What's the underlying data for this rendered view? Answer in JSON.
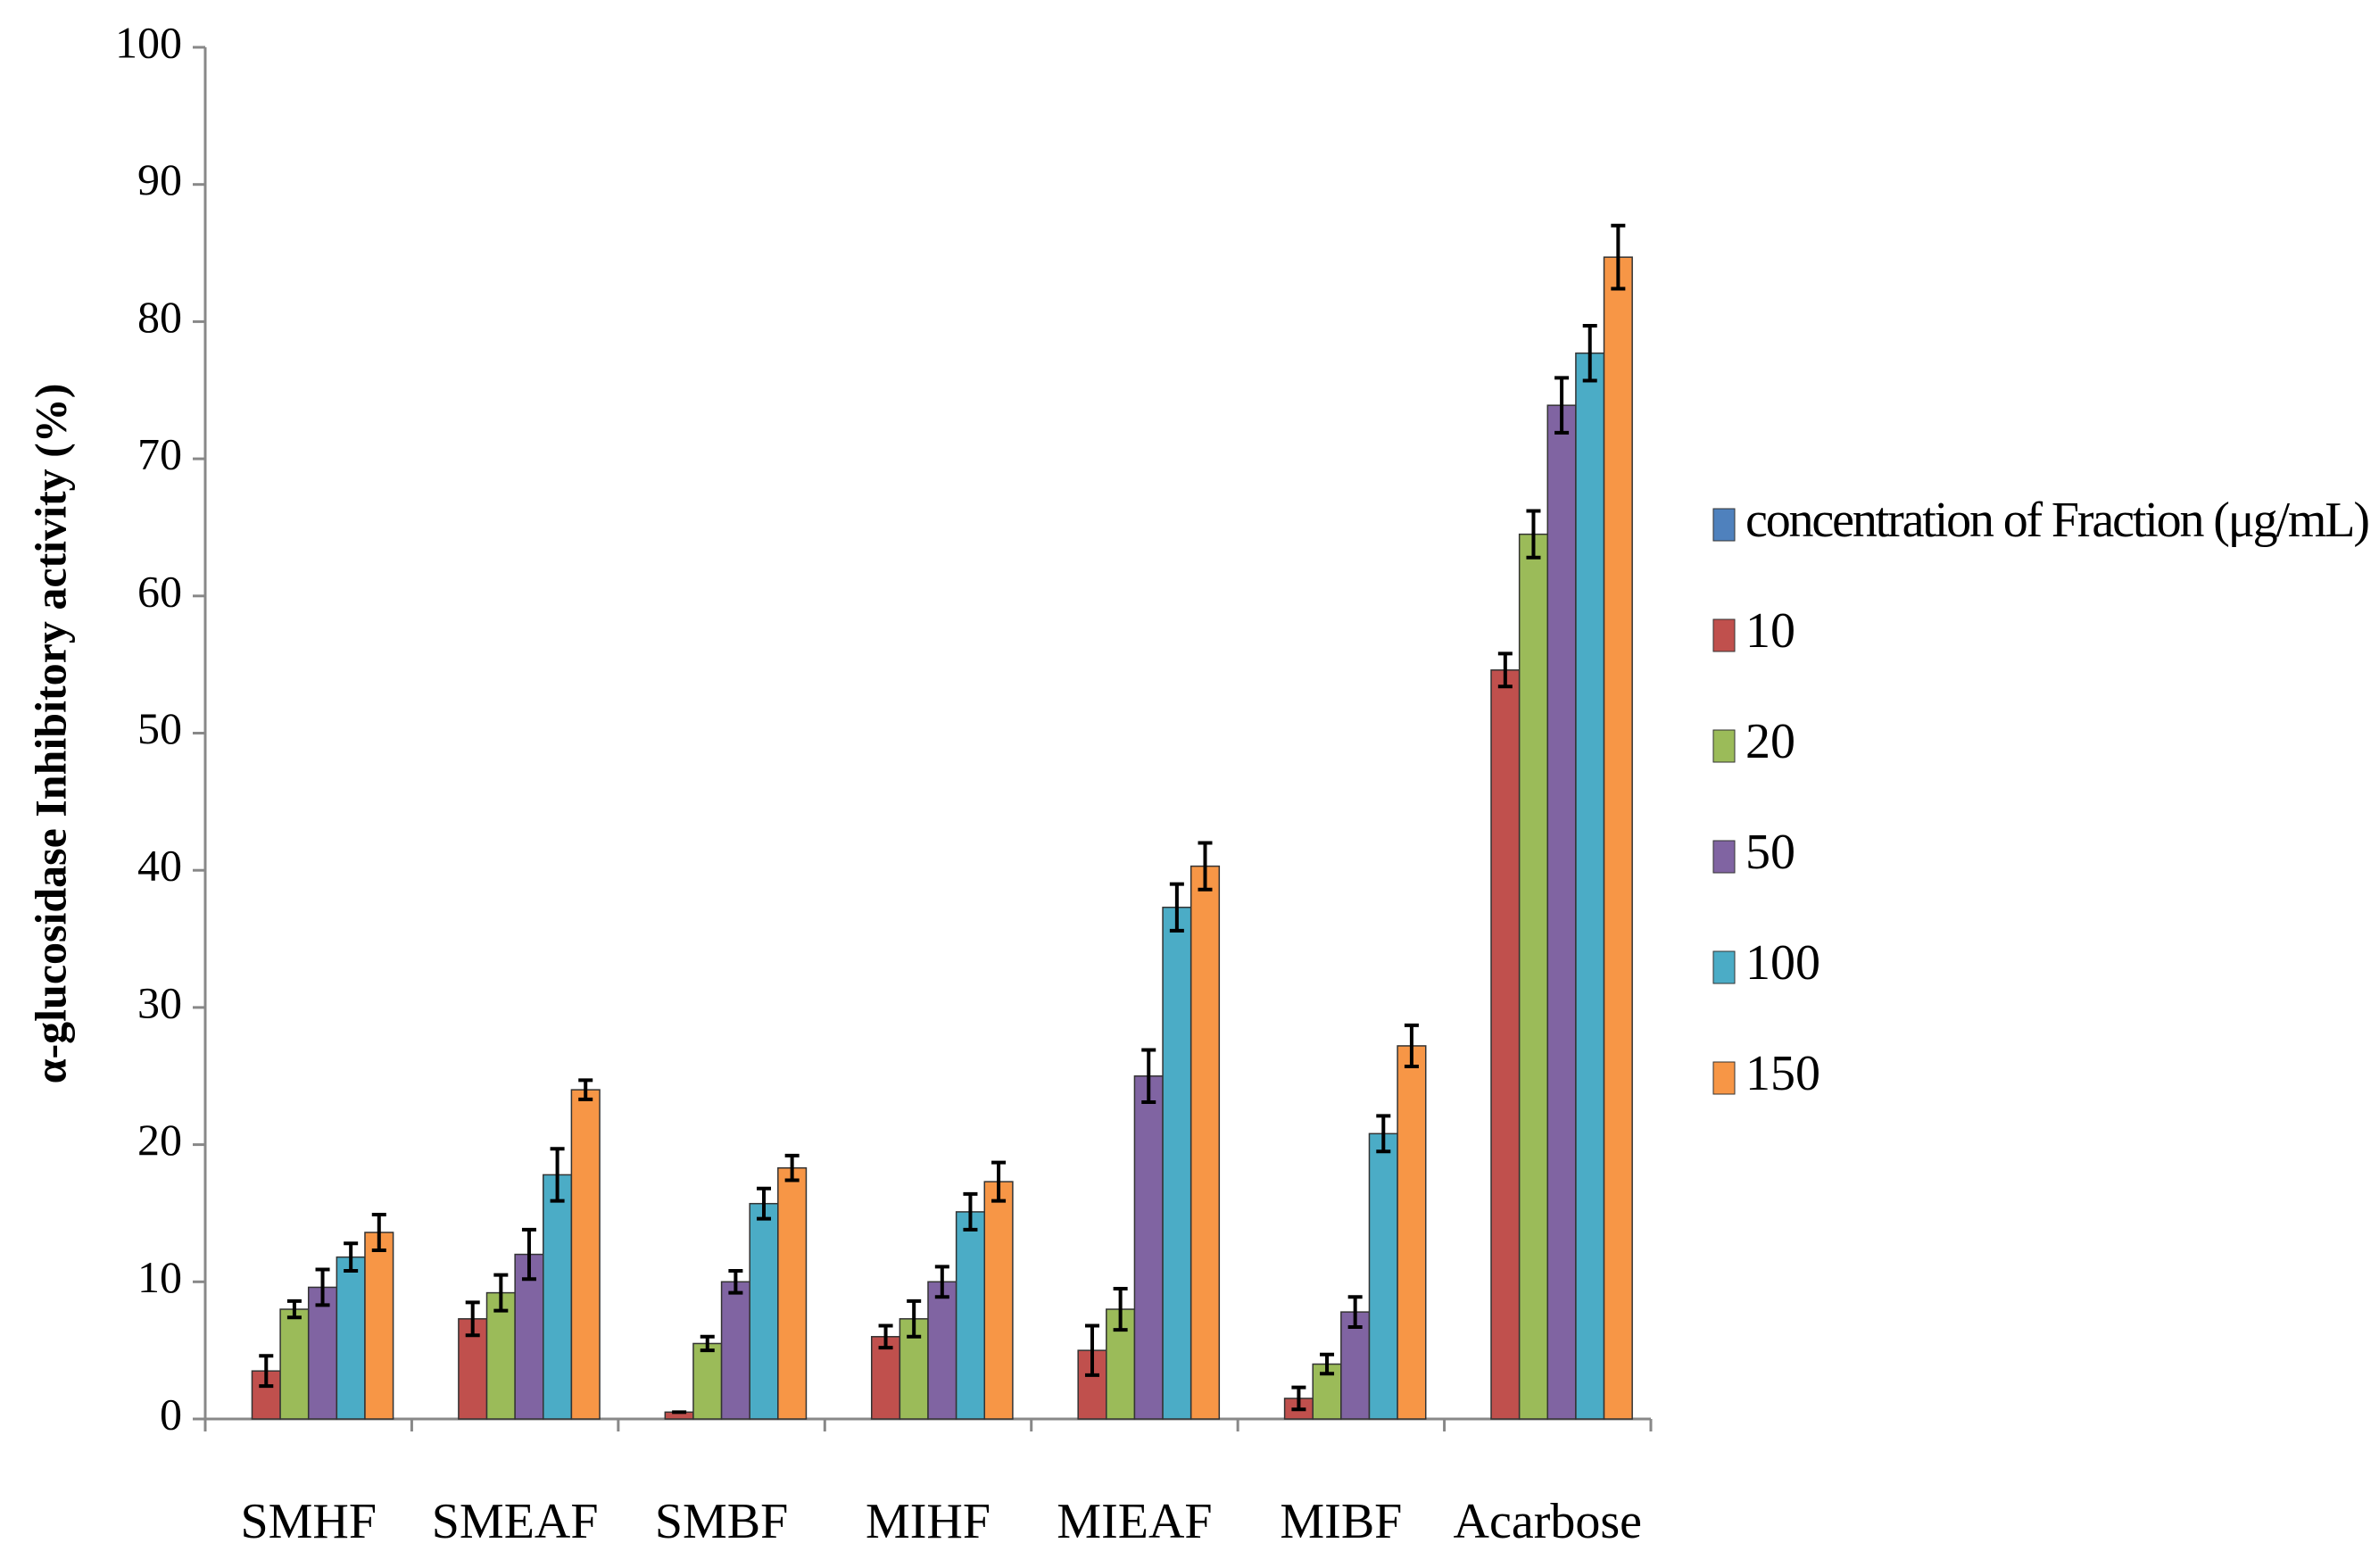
{
  "chart_data": {
    "type": "bar",
    "ylabel": "α-glucosidase Inhibitory activity (%)",
    "categories": [
      "SMHF",
      "SMEAF",
      "SMBF",
      "MIHF",
      "MIEAF",
      "MIBF",
      "Acarbose"
    ],
    "series": [
      {
        "name": "concentration of Fraction (μg/mL)",
        "color": "#4f81bd",
        "values": [
          null,
          null,
          null,
          null,
          null,
          null,
          null
        ],
        "errors": [
          null,
          null,
          null,
          null,
          null,
          null,
          null
        ]
      },
      {
        "name": "10",
        "color": "#c0504d",
        "values": [
          3.5,
          7.3,
          0.5,
          6,
          5,
          1.5,
          54.6
        ],
        "errors": [
          1.1,
          1.2,
          0,
          0.8,
          1.8,
          0.8,
          1.2
        ]
      },
      {
        "name": "20",
        "color": "#9bbb59",
        "values": [
          8,
          9.2,
          5.5,
          7.3,
          8,
          4,
          64.5
        ],
        "errors": [
          0.6,
          1.3,
          0.5,
          1.3,
          1.5,
          0.7,
          1.7
        ]
      },
      {
        "name": "50",
        "color": "#8064a2",
        "values": [
          9.6,
          12,
          10,
          10,
          25,
          7.8,
          73.9
        ],
        "errors": [
          1.3,
          1.8,
          0.8,
          1.1,
          1.9,
          1.1,
          2
        ]
      },
      {
        "name": "100",
        "color": "#4bacc6",
        "values": [
          11.8,
          17.8,
          15.7,
          15.1,
          37.3,
          20.8,
          77.7
        ],
        "errors": [
          1,
          1.9,
          1.1,
          1.3,
          1.7,
          1.3,
          2
        ]
      },
      {
        "name": "150",
        "color": "#f79646",
        "values": [
          13.6,
          24,
          18.3,
          17.3,
          40.3,
          27.2,
          84.7
        ],
        "errors": [
          1.3,
          0.7,
          0.9,
          1.4,
          1.7,
          1.5,
          2.3
        ]
      }
    ],
    "ylim": [
      0,
      100
    ],
    "yticks": [
      0,
      10,
      20,
      30,
      40,
      50,
      60,
      70,
      80,
      90,
      100
    ],
    "grid": false,
    "legend": "right"
  }
}
